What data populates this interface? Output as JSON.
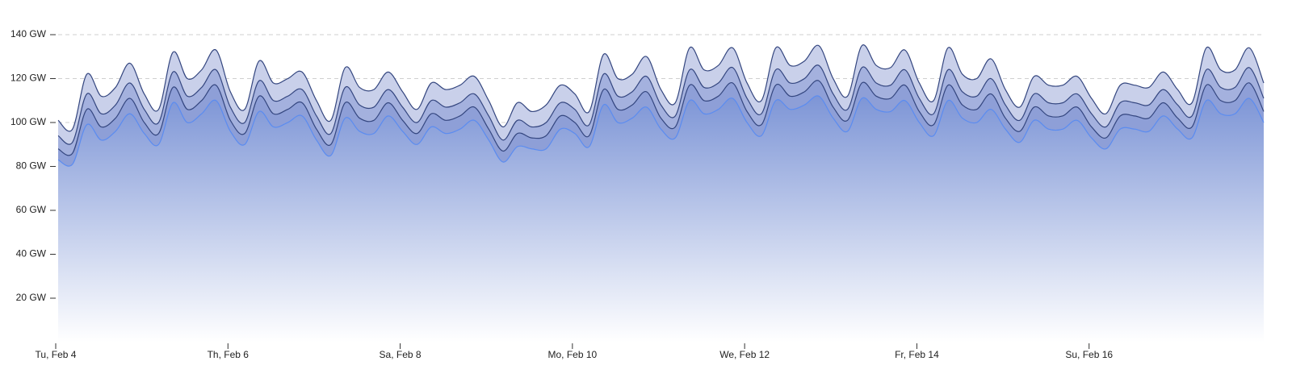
{
  "chart_data": {
    "type": "stacked-area",
    "x": [
      0,
      4,
      8,
      12,
      16,
      20,
      24,
      28,
      32,
      36,
      40,
      44,
      48,
      52,
      56,
      60,
      64,
      68,
      72,
      76,
      80,
      84,
      88,
      92,
      96,
      100,
      104,
      108,
      112,
      116,
      120,
      124,
      128,
      132,
      136,
      140,
      144,
      148,
      152,
      156,
      160,
      164,
      168,
      172,
      176,
      180,
      184,
      188,
      192,
      196,
      200,
      204,
      208,
      212,
      216,
      220,
      224,
      228,
      232,
      236,
      240,
      244,
      248,
      252,
      256,
      260,
      264,
      268,
      272,
      276,
      280,
      284,
      288,
      292,
      296,
      300,
      304,
      308,
      312,
      316,
      320,
      324,
      328,
      332,
      336
    ],
    "xlim": [
      0,
      336
    ],
    "xticks": [
      {
        "value": 0,
        "label": "Tu, Feb 4"
      },
      {
        "value": 48,
        "label": "Th, Feb 6"
      },
      {
        "value": 96,
        "label": "Sa, Feb 8"
      },
      {
        "value": 144,
        "label": "Mo, Feb 10"
      },
      {
        "value": 192,
        "label": "We, Feb 12"
      },
      {
        "value": 240,
        "label": "Fr, Feb 14"
      },
      {
        "value": 288,
        "label": "Su, Feb 16"
      }
    ],
    "ylim": [
      0,
      145
    ],
    "yticks": [
      {
        "value": 20,
        "label": "20 GW"
      },
      {
        "value": 40,
        "label": "40 GW"
      },
      {
        "value": 60,
        "label": "60 GW"
      },
      {
        "value": 80,
        "label": "80 GW"
      },
      {
        "value": 100,
        "label": "100 GW"
      },
      {
        "value": 120,
        "label": "120 GW"
      },
      {
        "value": 140,
        "label": "140 GW"
      }
    ],
    "grid": true,
    "series": [
      {
        "color": "#5b8cf0",
        "fill": "#7d95d6",
        "values": [
          83,
          81,
          99,
          92,
          96,
          104,
          95,
          90,
          109,
          100,
          104,
          110,
          96,
          90,
          105,
          98,
          100,
          103,
          92,
          85,
          102,
          96,
          95,
          103,
          96,
          90,
          98,
          95,
          97,
          101,
          92,
          82,
          89,
          88,
          88,
          97,
          95,
          89,
          108,
          100,
          102,
          107,
          97,
          93,
          110,
          104,
          106,
          111,
          100,
          94,
          110,
          106,
          108,
          112,
          102,
          96,
          111,
          106,
          105,
          110,
          100,
          94,
          110,
          102,
          100,
          106,
          97,
          91,
          101,
          97,
          97,
          101,
          93,
          88,
          97,
          97,
          96,
          103,
          97,
          93,
          110,
          104,
          104,
          111,
          100
        ]
      },
      {
        "color": "#34467f",
        "fill": "#8e9fd7",
        "values": [
          5,
          5,
          7,
          6,
          6,
          7,
          5,
          5,
          7,
          6,
          6,
          7,
          5,
          5,
          7,
          6,
          6,
          6,
          5,
          5,
          7,
          6,
          6,
          6,
          5,
          5,
          6,
          6,
          6,
          6,
          5,
          5,
          6,
          5,
          6,
          6,
          5,
          5,
          7,
          6,
          6,
          7,
          5,
          5,
          7,
          6,
          6,
          7,
          5,
          5,
          7,
          6,
          6,
          7,
          5,
          5,
          7,
          6,
          6,
          7,
          5,
          5,
          7,
          6,
          6,
          7,
          5,
          5,
          6,
          6,
          6,
          6,
          5,
          5,
          6,
          6,
          6,
          6,
          5,
          5,
          7,
          6,
          6,
          7,
          5
        ]
      },
      {
        "color": "#34467f",
        "fill": "#a4b1de",
        "values": [
          6,
          5,
          7,
          6,
          6,
          7,
          6,
          5,
          7,
          6,
          6,
          7,
          6,
          5,
          7,
          6,
          6,
          6,
          6,
          5,
          7,
          6,
          6,
          6,
          6,
          5,
          6,
          6,
          6,
          6,
          6,
          5,
          6,
          5,
          6,
          6,
          6,
          5,
          7,
          6,
          6,
          7,
          6,
          5,
          7,
          6,
          6,
          7,
          6,
          5,
          7,
          6,
          6,
          7,
          6,
          5,
          7,
          6,
          6,
          7,
          6,
          5,
          7,
          6,
          6,
          7,
          6,
          5,
          6,
          6,
          6,
          6,
          6,
          5,
          6,
          6,
          6,
          6,
          6,
          5,
          7,
          6,
          6,
          7,
          6
        ]
      },
      {
        "color": "#34467f",
        "fill": "#c9d0ea",
        "values": [
          7,
          6,
          9,
          8,
          8,
          9,
          7,
          6,
          9,
          8,
          8,
          9,
          7,
          6,
          9,
          8,
          8,
          8,
          7,
          6,
          9,
          8,
          8,
          8,
          7,
          6,
          8,
          8,
          8,
          8,
          7,
          6,
          8,
          7,
          8,
          8,
          7,
          6,
          9,
          8,
          8,
          9,
          7,
          6,
          10,
          8,
          8,
          9,
          7,
          6,
          10,
          8,
          8,
          9,
          7,
          6,
          10,
          8,
          8,
          9,
          7,
          6,
          10,
          8,
          8,
          9,
          7,
          6,
          8,
          8,
          8,
          8,
          7,
          6,
          8,
          8,
          8,
          8,
          7,
          6,
          10,
          8,
          8,
          9,
          7
        ]
      }
    ]
  }
}
